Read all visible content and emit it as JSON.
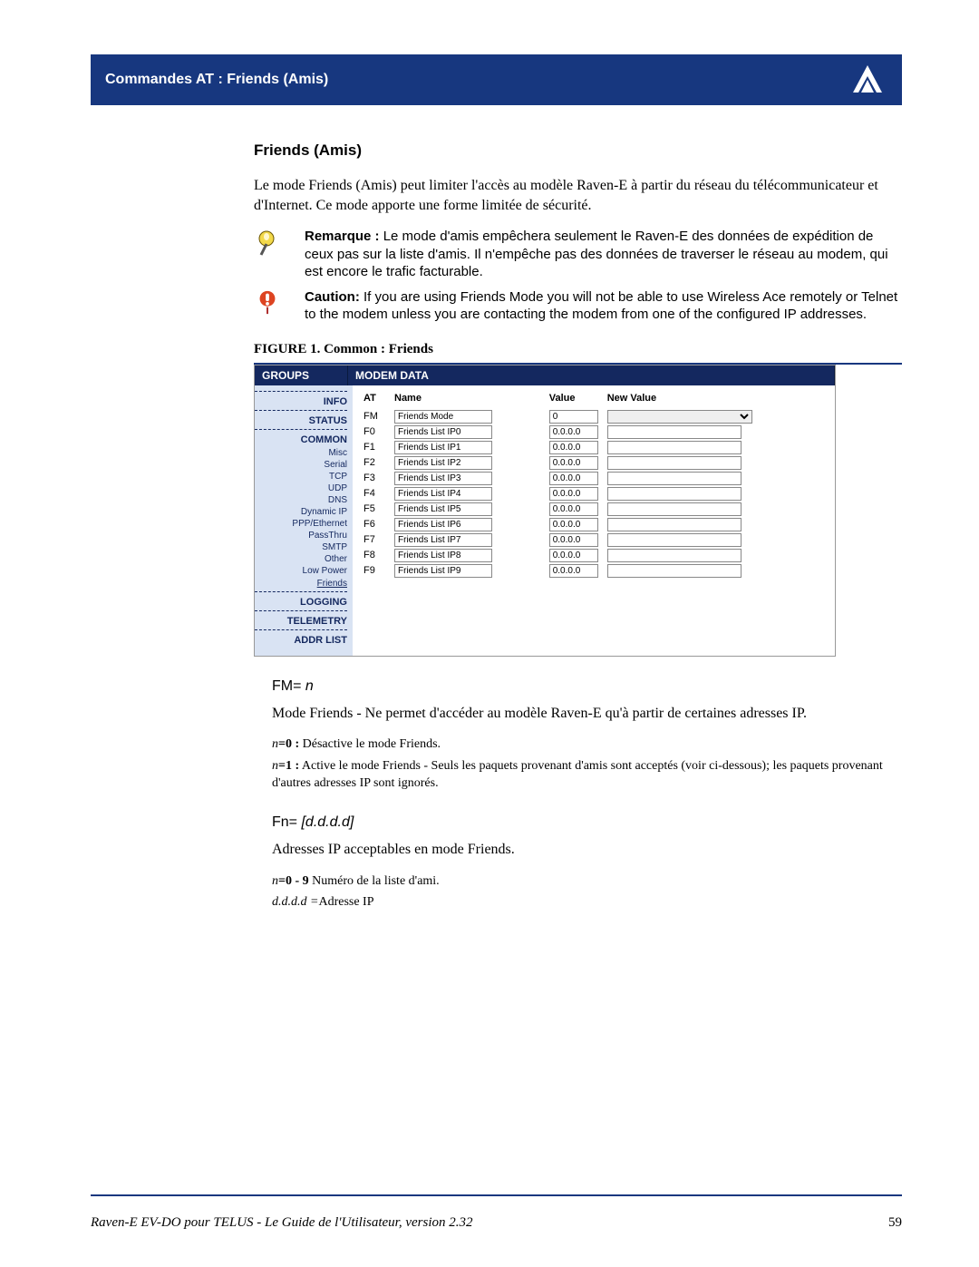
{
  "header": {
    "title": "Commandes AT : Friends (Amis)"
  },
  "section": {
    "heading": "Friends (Amis)",
    "intro": "Le mode Friends (Amis) peut limiter l'accès au modèle Raven-E à partir du réseau du télécommunicateur et d'Internet.  Ce mode apporte une forme limitée de sécurité.",
    "note_label": "Remarque :",
    "note_text": " Le mode d'amis empêchera seulement le Raven-E des données de expédition de ceux pas sur la liste d'amis. Il n'empêche pas des données de traverser le réseau au modem, qui est encore le trafic facturable.",
    "caution_label": "Caution:",
    "caution_text": " If you are using Friends Mode you will not be able to use Wireless Ace remotely or Telnet to the modem unless you are contacting the modem from one of the configured IP addresses.",
    "figure_caption": "FIGURE 1.  Common : Friends"
  },
  "screenshot": {
    "groups_header": "GROUPS",
    "modem_header": "MODEM DATA",
    "side": {
      "info": "INFO",
      "status": "STATUS",
      "common": "COMMON",
      "subs": [
        "Misc",
        "Serial",
        "TCP",
        "UDP",
        "DNS",
        "Dynamic IP",
        "PPP/Ethernet",
        "PassThru",
        "SMTP",
        "Other",
        "Low Power"
      ],
      "friends": "Friends",
      "logging": "LOGGING",
      "telemetry": "TELEMETRY",
      "addr": "ADDR LIST"
    },
    "cols": {
      "at": "AT",
      "name": "Name",
      "value": "Value",
      "new": "New Value"
    },
    "rows": [
      {
        "at": "FM",
        "name": "Friends Mode",
        "value": "0",
        "type": "select"
      },
      {
        "at": "F0",
        "name": "Friends List IP0",
        "value": "0.0.0.0",
        "type": "text"
      },
      {
        "at": "F1",
        "name": "Friends List IP1",
        "value": "0.0.0.0",
        "type": "text"
      },
      {
        "at": "F2",
        "name": "Friends List IP2",
        "value": "0.0.0.0",
        "type": "text"
      },
      {
        "at": "F3",
        "name": "Friends List IP3",
        "value": "0.0.0.0",
        "type": "text"
      },
      {
        "at": "F4",
        "name": "Friends List IP4",
        "value": "0.0.0.0",
        "type": "text"
      },
      {
        "at": "F5",
        "name": "Friends List IP5",
        "value": "0.0.0.0",
        "type": "text"
      },
      {
        "at": "F6",
        "name": "Friends List IP6",
        "value": "0.0.0.0",
        "type": "text"
      },
      {
        "at": "F7",
        "name": "Friends List IP7",
        "value": "0.0.0.0",
        "type": "text"
      },
      {
        "at": "F8",
        "name": "Friends List IP8",
        "value": "0.0.0.0",
        "type": "text"
      },
      {
        "at": "F9",
        "name": "Friends List IP9",
        "value": "0.0.0.0",
        "type": "text"
      }
    ]
  },
  "commands": {
    "fm": {
      "head_pre": "FM= ",
      "head_var": "n",
      "desc": "Mode Friends - Ne permet d'accéder au modèle Raven-E qu'à partir de certaines adresses IP.",
      "p1_var": "n",
      "p1_eq": "=0 :",
      "p1_text": " Désactive le mode Friends.",
      "p2_var": "n",
      "p2_eq": "=1 :",
      "p2_text": " Active le mode Friends - Seuls les paquets provenant d'amis sont acceptés (voir ci-dessous); les paquets provenant d'autres adresses IP sont ignorés."
    },
    "fn": {
      "head_pre": "Fn= ",
      "head_var": "[d.d.d.d]",
      "desc": "Adresses IP acceptables en mode Friends.",
      "p1_var": "n",
      "p1_eq": "=0 - 9",
      "p1_text": " Numéro de la liste d'ami.",
      "p2_var": "d.d.d.d =",
      "p2_text": "Adresse IP"
    }
  },
  "footer": {
    "text": "Raven-E EV-DO pour TELUS - Le Guide de l'Utilisateur, version 2.32",
    "page": "59"
  }
}
